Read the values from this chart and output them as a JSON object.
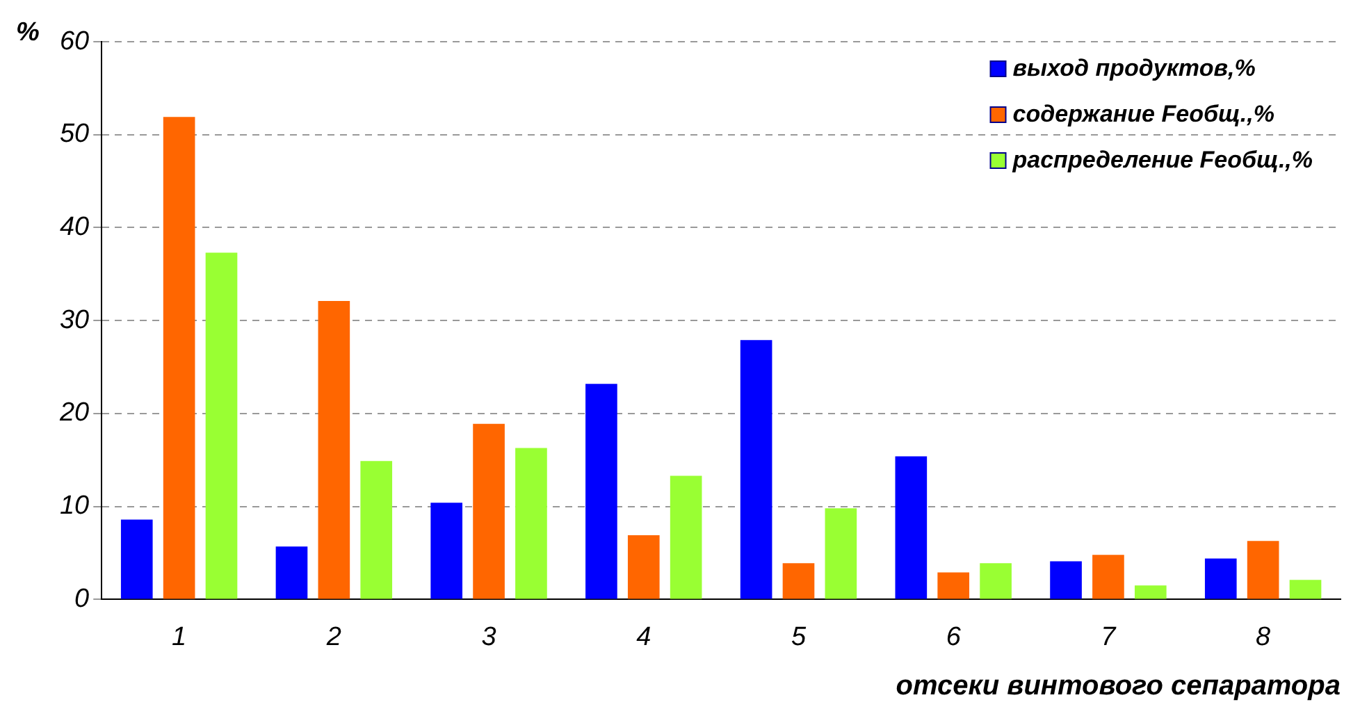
{
  "chart_data": {
    "type": "bar",
    "ylabel": "%",
    "xlabel": "отсеки винтового сепаратора",
    "categories": [
      "1",
      "2",
      "3",
      "4",
      "5",
      "6",
      "7",
      "8"
    ],
    "series": [
      {
        "name": "выход продуктов,%",
        "color": "#0000ff",
        "values": [
          8.6,
          5.7,
          10.4,
          23.2,
          27.9,
          15.4,
          4.1,
          4.4
        ]
      },
      {
        "name": "содержание Feобщ.,%",
        "color": "#ff6600",
        "values": [
          51.9,
          32.1,
          18.9,
          6.9,
          3.9,
          2.9,
          4.8,
          6.3
        ]
      },
      {
        "name": "распределение Feобщ.,%",
        "color": "#99ff33",
        "values": [
          37.3,
          14.9,
          16.3,
          13.3,
          9.8,
          3.9,
          1.5,
          2.1
        ]
      }
    ],
    "ylim": [
      0,
      60
    ],
    "yticks": [
      0,
      10,
      20,
      30,
      40,
      50,
      60
    ],
    "grid": "y",
    "legend": "top right"
  }
}
